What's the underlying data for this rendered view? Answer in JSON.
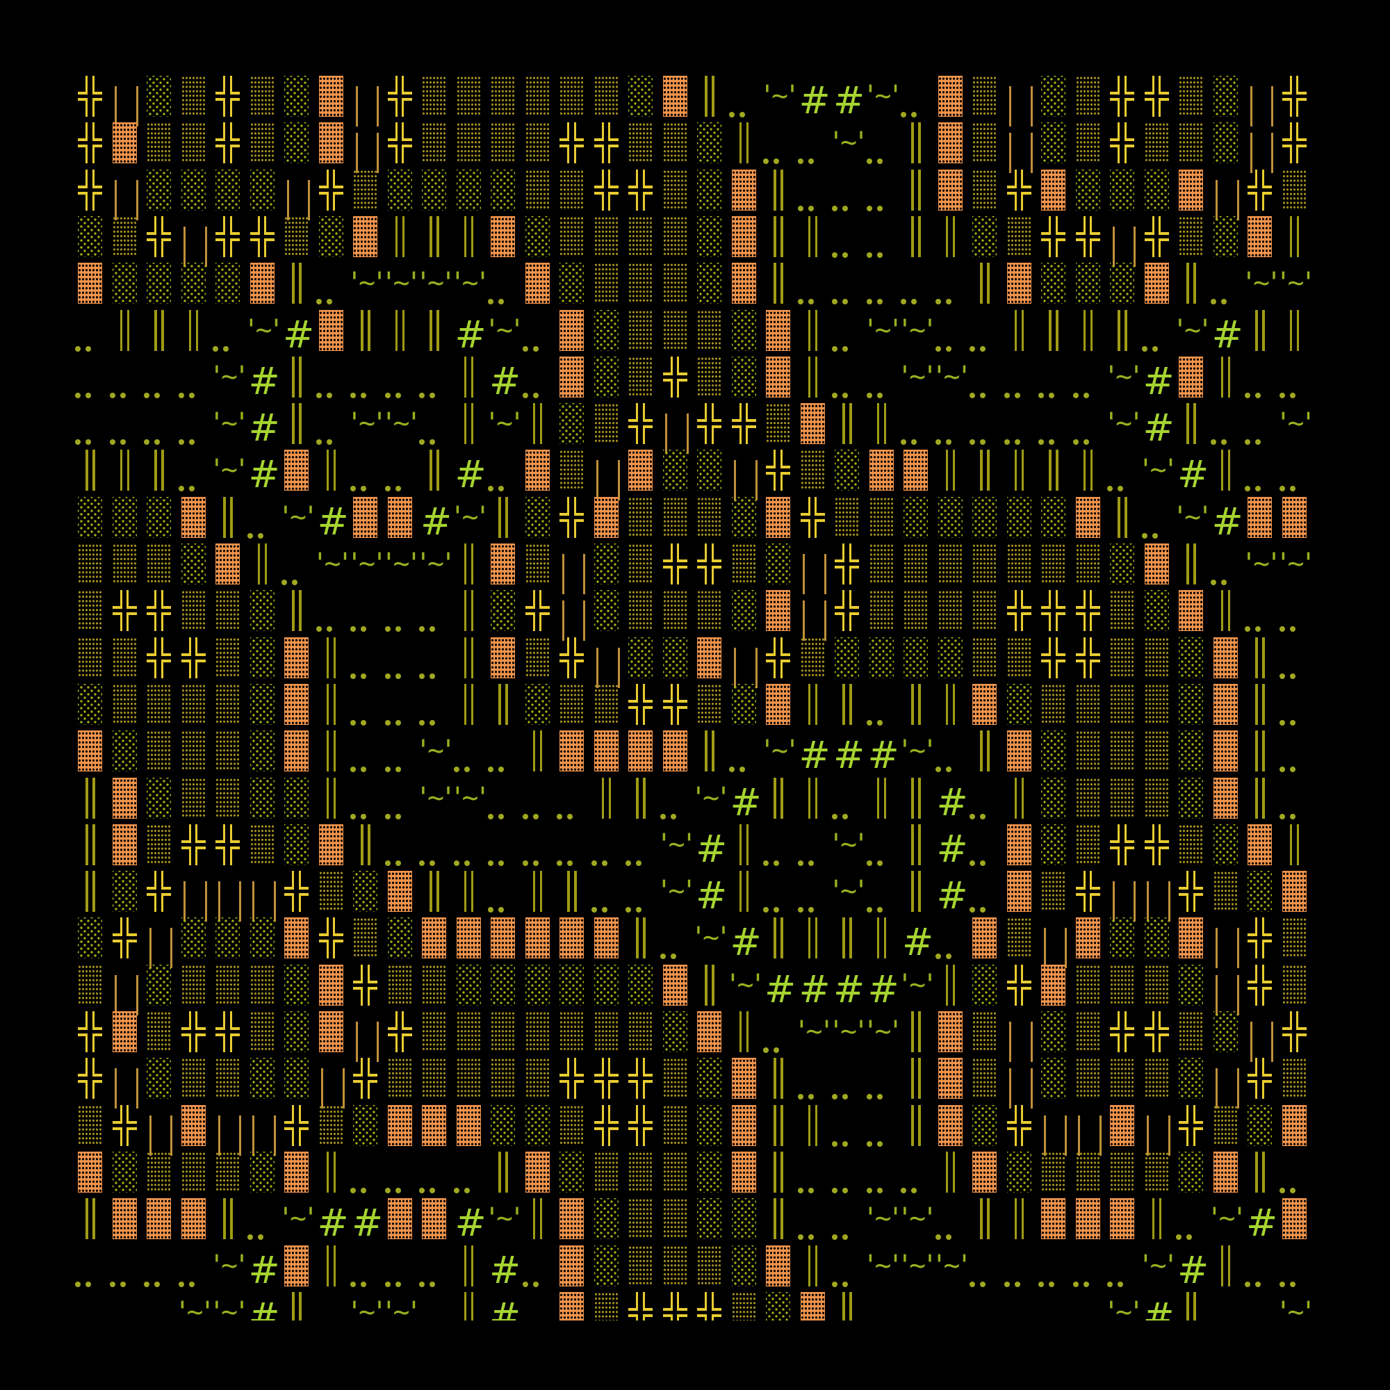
{
  "colors": {
    "background": "#000000",
    "cross": "#e8cc30",
    "bracket": "#c0903a",
    "light_shade": "#a8b414",
    "medium_shade": "#a89420",
    "dark_shade": "#f0944c",
    "double_bar": "#a09c14",
    "dots": "#a0a820",
    "tilde": "#98b020",
    "hash": "#a6d430"
  },
  "glyph_names": {
    "╬": "cross-glyph",
    "⊔": "bracket-glyph",
    "░": "light-shade-glyph",
    "▒": "medium-shade-glyph",
    "▓": "dark-shade-glyph",
    "║": "double-bar-glyph",
    "‥": "dots-glyph",
    "~": "tilde-glyph",
    "#": "hash-glyph"
  },
  "rows": [
    "╬⊔░▒╬▒░▓⊔╬▒▒▒▒▒▒░▓║‥~##~‥▓▒⊔░▒╬╬▒░⊔╬",
    "╬▓▒▒╬▒░▓⊔╬▒▒▒▒╬╬▒▒░║‥‥~‥║▓▒⊔░▒╬▒▒░⊔╬",
    "╬⊔░░░░⊔╬▒░░░░▒▒╬╬▒░▓║‥‥‥║▓▒╬▓░░░▓⊔╬▒",
    "░▒╬⊔╬╬▒░▓║║║▓░▒▒▒▒░▓║║‥‥║║░▒╬╬⊔╬▒░▓║",
    "▓░░░░▓║‥~~~~‥▓░▒▒▒░▓║‥‥‥‥‥║▓░░░▓║‥~~",
    "‥║║║‥~#▓║║║#~‥▓░▒▒▒░▓║‥~~‥‥║║║║‥~#║║",
    "‥‥‥‥~#║‥‥‥‥║#‥▓░▒╬▒░▓║‥‥~~‥‥‥‥~#▓║‥‥",
    "‥‥‥‥~#║‥~~‥║~║░▒╬⊔╬╬▒▓║║‥‥‥‥‥‥~#║‥‥~",
    "║║║‥~#▓║‥‥║#‥▓▒⊔▓░░⊔╬▒░▓▓║║║║║‥~#║‥‥",
    "░░░▓║‥~#▓▓#~║░╬▓▒▒▒░▓╬▒▒░░░░░▓║‥~#▓▓",
    "▒▒▒░▓║‥~~~~║▓▒⊔░▒╬╬▒░⊔╬▒▒▒▒▒▒▒░▓║‥~~",
    "▒╬╬▒▒░║‥‥‥‥║░╬⊔░▒▒▒░▓⊔╬▒▒▒▒╬╬╬▒░▓║‥‥",
    "▒▒╬╬▒░▓║‥‥‥║▓▒╬⊔░░▓⊔╬▒░░░░▒▒╬╬▒▒░▓║‥",
    "░▒▒▒▒░▓║‥‥‥║║░▒▒╬╬▒░▓║║‥║║▓░▒▒▒▒░▓║‥",
    "▓░▒▒▒░▓║‥‥~‥‥║▓▓▓▓║‥~###~‥║▓░▒▒▒░▓║‥",
    "║▓░▒▒░░║‥‥~~‥‥‥║║‥~#║║‥║║#‥║░▒▒▒░▓║‥",
    "║▓▒╬╬▒░▓║‥‥‥‥‥‥‥‥~#║‥‥~‥║#‥▓░▒╬╬▒░▓║",
    "║░╬⊔⊔⊔╬▒░▓║║‥║║‥‥~#║‥‥~‥║#‥▓▒╬⊔⊔╬▒░▓",
    "░╬⊔░░░▓╬▒░▓▓▓▓▓▓║‥~#║║║║#‥▓▒⊔▓░░▓⊔╬▒",
    "▒⊔░▒▒▒░▓╬▒▒░░░░░░▓║~####~║░╬▓▒▒▒░⊔╬▒",
    "╬▓▒╬╬▒░▓⊔╬▒▒▒▒▒▒▒░▓║‥~~~║▓▒⊔░▒╬╬▒░⊔╬",
    "╬⊔░▒▒░░⊔╬▒▒▒▒▒╬╬╬▒░▓║‥‥‥║▓▒⊔░▒▒▒░⊔╬▒",
    "▒╬⊔▓⊔⊔╬▒░▓▓▓░░▒╬╬▒░▓║║‥‥║▓░╬⊔⊔▓⊔╬▒░▓",
    "▓░▒▒▒░▓║‥‥‥‥║▓░▒▒▒░▓║‥‥‥‥║▓░▒▒▒▒░▓║‥",
    "║▓▓▓║‥~##▓▓#~║▓░▒▒░░║‥‥~~‥║║▓▓▓║‥~#▓",
    "‥‥‥‥~#▓║‥‥‥║#‥▓░▒▒▒░▓║‥~~~‥‥‥‥‥~#║‥‥",
    "   ~~#║ ~~ ║# ▓▒╬╬╬▒░▓║       ~#║  ~"
  ]
}
